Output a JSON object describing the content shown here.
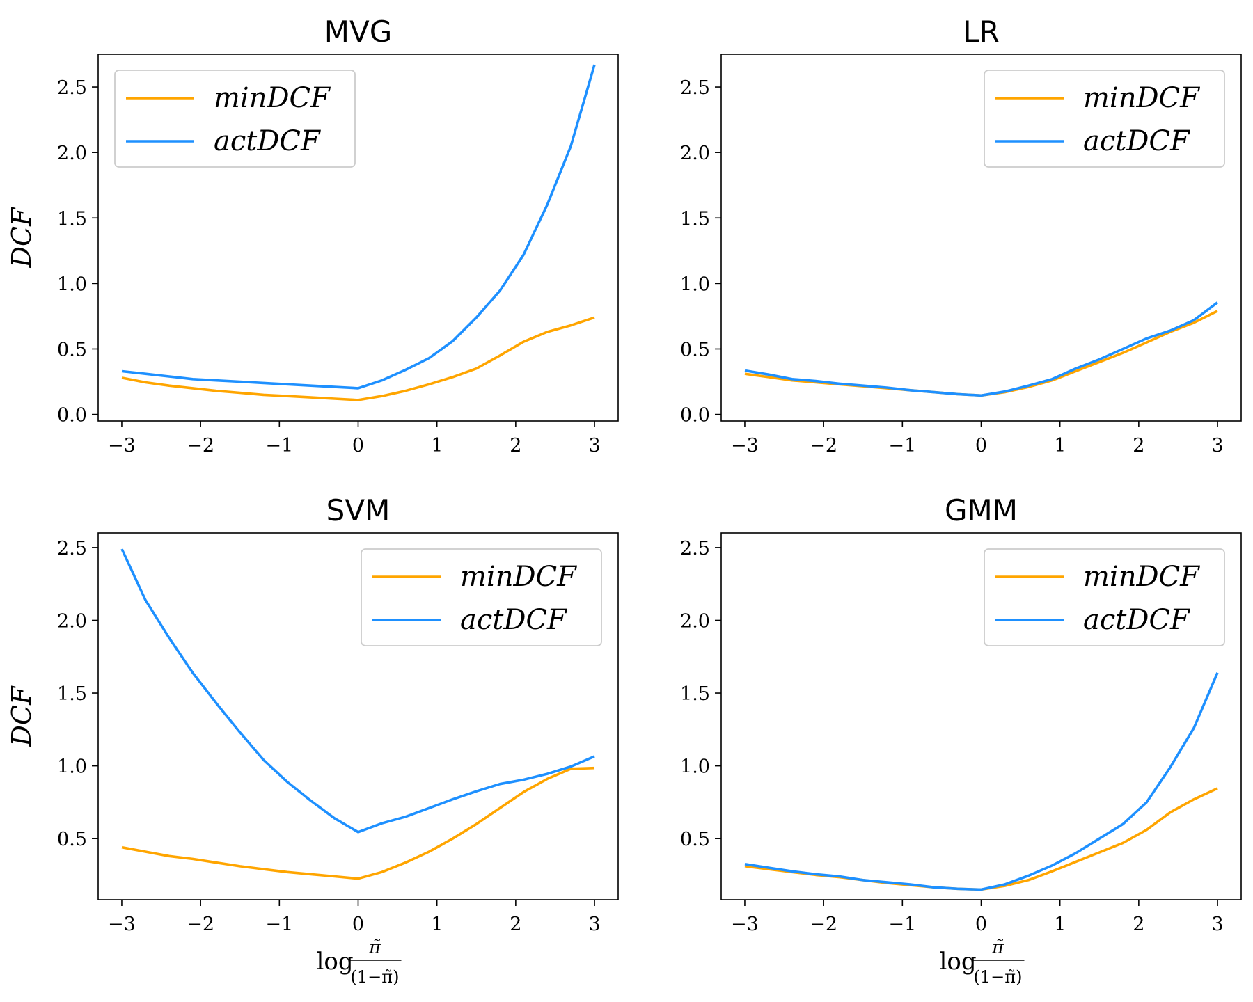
{
  "figure": {
    "colors": {
      "minDCF": "#FFA500",
      "actDCF": "#1E90FF"
    }
  },
  "chart_data": [
    {
      "type": "line",
      "title": "MVG",
      "ylabel": "DCF",
      "xlabel": "",
      "xlim": [
        -3.3,
        3.3
      ],
      "ylim": [
        -0.05,
        2.75
      ],
      "xticks": [
        -3,
        -2,
        -1,
        0,
        1,
        2,
        3
      ],
      "xtick_labels": [
        "−3",
        "−2",
        "−1",
        "0",
        "1",
        "2",
        "3"
      ],
      "yticks": [
        0.0,
        0.5,
        1.0,
        1.5,
        2.0,
        2.5
      ],
      "ytick_labels": [
        "0.0",
        "0.5",
        "1.0",
        "1.5",
        "2.0",
        "2.5"
      ],
      "legend_position": "upper left",
      "x": [
        -3.0,
        -2.7,
        -2.4,
        -2.1,
        -1.8,
        -1.5,
        -1.2,
        -0.9,
        -0.6,
        -0.3,
        0.0,
        0.3,
        0.6,
        0.9,
        1.2,
        1.5,
        1.8,
        2.1,
        2.4,
        2.7,
        3.0
      ],
      "series": [
        {
          "name": "minDCF",
          "values": [
            0.28,
            0.245,
            0.22,
            0.2,
            0.18,
            0.165,
            0.15,
            0.14,
            0.13,
            0.12,
            0.11,
            0.14,
            0.18,
            0.23,
            0.285,
            0.35,
            0.45,
            0.555,
            0.63,
            0.68,
            0.74
          ]
        },
        {
          "name": "actDCF",
          "values": [
            0.33,
            0.31,
            0.29,
            0.27,
            0.26,
            0.25,
            0.24,
            0.23,
            0.22,
            0.21,
            0.2,
            0.26,
            0.34,
            0.43,
            0.56,
            0.74,
            0.945,
            1.22,
            1.6,
            2.05,
            2.67
          ]
        }
      ]
    },
    {
      "type": "line",
      "title": "LR",
      "ylabel": "",
      "xlabel": "",
      "xlim": [
        -3.3,
        3.3
      ],
      "ylim": [
        -0.05,
        2.75
      ],
      "xticks": [
        -3,
        -2,
        -1,
        0,
        1,
        2,
        3
      ],
      "xtick_labels": [
        "−3",
        "−2",
        "−1",
        "0",
        "1",
        "2",
        "3"
      ],
      "yticks": [
        0.0,
        0.5,
        1.0,
        1.5,
        2.0,
        2.5
      ],
      "ytick_labels": [
        "0.0",
        "0.5",
        "1.0",
        "1.5",
        "2.0",
        "2.5"
      ],
      "legend_position": "upper right",
      "x": [
        -3.0,
        -2.7,
        -2.4,
        -2.1,
        -1.8,
        -1.5,
        -1.2,
        -0.9,
        -0.6,
        -0.3,
        0.0,
        0.3,
        0.6,
        0.9,
        1.2,
        1.5,
        1.8,
        2.1,
        2.4,
        2.7,
        3.0
      ],
      "series": [
        {
          "name": "minDCF",
          "values": [
            0.31,
            0.285,
            0.26,
            0.245,
            0.23,
            0.215,
            0.2,
            0.185,
            0.17,
            0.155,
            0.145,
            0.17,
            0.21,
            0.26,
            0.33,
            0.4,
            0.47,
            0.55,
            0.63,
            0.7,
            0.79
          ]
        },
        {
          "name": "actDCF",
          "values": [
            0.335,
            0.305,
            0.27,
            0.255,
            0.235,
            0.22,
            0.205,
            0.185,
            0.17,
            0.155,
            0.145,
            0.175,
            0.22,
            0.27,
            0.35,
            0.42,
            0.5,
            0.58,
            0.64,
            0.72,
            0.855
          ]
        }
      ]
    },
    {
      "type": "line",
      "title": "SVM",
      "ylabel": "DCF",
      "xlabel": "log π̃ / (1−π̃)",
      "xlim": [
        -3.3,
        3.3
      ],
      "ylim": [
        0.08,
        2.6
      ],
      "xticks": [
        -3,
        -2,
        -1,
        0,
        1,
        2,
        3
      ],
      "xtick_labels": [
        "−3",
        "−2",
        "−1",
        "0",
        "1",
        "2",
        "3"
      ],
      "yticks": [
        0.5,
        1.0,
        1.5,
        2.0,
        2.5
      ],
      "ytick_labels": [
        "0.5",
        "1.0",
        "1.5",
        "2.0",
        "2.5"
      ],
      "legend_position": "upper right",
      "x": [
        -3.0,
        -2.7,
        -2.4,
        -2.1,
        -1.8,
        -1.5,
        -1.2,
        -0.9,
        -0.6,
        -0.3,
        0.0,
        0.3,
        0.6,
        0.9,
        1.2,
        1.5,
        1.8,
        2.1,
        2.4,
        2.7,
        3.0
      ],
      "series": [
        {
          "name": "minDCF",
          "values": [
            0.44,
            0.41,
            0.38,
            0.36,
            0.335,
            0.31,
            0.29,
            0.27,
            0.255,
            0.24,
            0.225,
            0.27,
            0.335,
            0.41,
            0.5,
            0.6,
            0.71,
            0.82,
            0.91,
            0.98,
            0.985
          ]
        },
        {
          "name": "actDCF",
          "values": [
            2.49,
            2.14,
            1.88,
            1.64,
            1.43,
            1.23,
            1.04,
            0.89,
            0.76,
            0.64,
            0.545,
            0.605,
            0.65,
            0.71,
            0.77,
            0.825,
            0.875,
            0.905,
            0.945,
            0.995,
            1.065
          ]
        }
      ]
    },
    {
      "type": "line",
      "title": "GMM",
      "ylabel": "",
      "xlabel": "log π̃ / (1−π̃)",
      "xlim": [
        -3.3,
        3.3
      ],
      "ylim": [
        0.08,
        2.6
      ],
      "xticks": [
        -3,
        -2,
        -1,
        0,
        1,
        2,
        3
      ],
      "xtick_labels": [
        "−3",
        "−2",
        "−1",
        "0",
        "1",
        "2",
        "3"
      ],
      "yticks": [
        0.5,
        1.0,
        1.5,
        2.0,
        2.5
      ],
      "ytick_labels": [
        "0.5",
        "1.0",
        "1.5",
        "2.0",
        "2.5"
      ],
      "legend_position": "upper right",
      "x": [
        -3.0,
        -2.7,
        -2.4,
        -2.1,
        -1.8,
        -1.5,
        -1.2,
        -0.9,
        -0.6,
        -0.3,
        0.0,
        0.3,
        0.6,
        0.9,
        1.2,
        1.5,
        1.8,
        2.1,
        2.4,
        2.7,
        3.0
      ],
      "series": [
        {
          "name": "minDCF",
          "values": [
            0.31,
            0.29,
            0.27,
            0.25,
            0.235,
            0.215,
            0.195,
            0.18,
            0.165,
            0.155,
            0.15,
            0.175,
            0.215,
            0.275,
            0.34,
            0.405,
            0.47,
            0.56,
            0.68,
            0.77,
            0.845
          ]
        },
        {
          "name": "actDCF",
          "values": [
            0.325,
            0.3,
            0.275,
            0.255,
            0.24,
            0.215,
            0.2,
            0.185,
            0.165,
            0.155,
            0.15,
            0.185,
            0.245,
            0.315,
            0.4,
            0.5,
            0.6,
            0.75,
            0.99,
            1.26,
            1.64
          ]
        }
      ]
    }
  ]
}
